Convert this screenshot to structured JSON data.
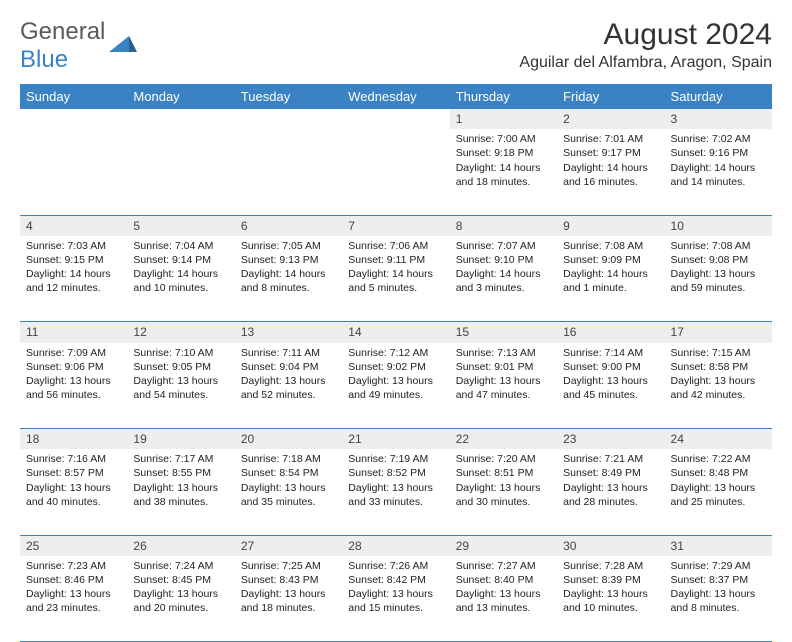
{
  "brand": {
    "word1": "General",
    "word2": "Blue"
  },
  "title": "August 2024",
  "location": "Aguilar del Alfambra, Aragon, Spain",
  "colors": {
    "header_bg": "#3b82c4",
    "header_text": "#ffffff",
    "grid_border": "#3b82c4",
    "daynum_bg": "#eceeef",
    "text": "#222222",
    "logo_gray": "#5a5a5a",
    "logo_blue": "#3b82c4"
  },
  "weekdays": [
    "Sunday",
    "Monday",
    "Tuesday",
    "Wednesday",
    "Thursday",
    "Friday",
    "Saturday"
  ],
  "weeks": [
    [
      null,
      null,
      null,
      null,
      {
        "n": "1",
        "sr": "7:00 AM",
        "ss": "9:18 PM",
        "dl": "14 hours and 18 minutes."
      },
      {
        "n": "2",
        "sr": "7:01 AM",
        "ss": "9:17 PM",
        "dl": "14 hours and 16 minutes."
      },
      {
        "n": "3",
        "sr": "7:02 AM",
        "ss": "9:16 PM",
        "dl": "14 hours and 14 minutes."
      }
    ],
    [
      {
        "n": "4",
        "sr": "7:03 AM",
        "ss": "9:15 PM",
        "dl": "14 hours and 12 minutes."
      },
      {
        "n": "5",
        "sr": "7:04 AM",
        "ss": "9:14 PM",
        "dl": "14 hours and 10 minutes."
      },
      {
        "n": "6",
        "sr": "7:05 AM",
        "ss": "9:13 PM",
        "dl": "14 hours and 8 minutes."
      },
      {
        "n": "7",
        "sr": "7:06 AM",
        "ss": "9:11 PM",
        "dl": "14 hours and 5 minutes."
      },
      {
        "n": "8",
        "sr": "7:07 AM",
        "ss": "9:10 PM",
        "dl": "14 hours and 3 minutes."
      },
      {
        "n": "9",
        "sr": "7:08 AM",
        "ss": "9:09 PM",
        "dl": "14 hours and 1 minute."
      },
      {
        "n": "10",
        "sr": "7:08 AM",
        "ss": "9:08 PM",
        "dl": "13 hours and 59 minutes."
      }
    ],
    [
      {
        "n": "11",
        "sr": "7:09 AM",
        "ss": "9:06 PM",
        "dl": "13 hours and 56 minutes."
      },
      {
        "n": "12",
        "sr": "7:10 AM",
        "ss": "9:05 PM",
        "dl": "13 hours and 54 minutes."
      },
      {
        "n": "13",
        "sr": "7:11 AM",
        "ss": "9:04 PM",
        "dl": "13 hours and 52 minutes."
      },
      {
        "n": "14",
        "sr": "7:12 AM",
        "ss": "9:02 PM",
        "dl": "13 hours and 49 minutes."
      },
      {
        "n": "15",
        "sr": "7:13 AM",
        "ss": "9:01 PM",
        "dl": "13 hours and 47 minutes."
      },
      {
        "n": "16",
        "sr": "7:14 AM",
        "ss": "9:00 PM",
        "dl": "13 hours and 45 minutes."
      },
      {
        "n": "17",
        "sr": "7:15 AM",
        "ss": "8:58 PM",
        "dl": "13 hours and 42 minutes."
      }
    ],
    [
      {
        "n": "18",
        "sr": "7:16 AM",
        "ss": "8:57 PM",
        "dl": "13 hours and 40 minutes."
      },
      {
        "n": "19",
        "sr": "7:17 AM",
        "ss": "8:55 PM",
        "dl": "13 hours and 38 minutes."
      },
      {
        "n": "20",
        "sr": "7:18 AM",
        "ss": "8:54 PM",
        "dl": "13 hours and 35 minutes."
      },
      {
        "n": "21",
        "sr": "7:19 AM",
        "ss": "8:52 PM",
        "dl": "13 hours and 33 minutes."
      },
      {
        "n": "22",
        "sr": "7:20 AM",
        "ss": "8:51 PM",
        "dl": "13 hours and 30 minutes."
      },
      {
        "n": "23",
        "sr": "7:21 AM",
        "ss": "8:49 PM",
        "dl": "13 hours and 28 minutes."
      },
      {
        "n": "24",
        "sr": "7:22 AM",
        "ss": "8:48 PM",
        "dl": "13 hours and 25 minutes."
      }
    ],
    [
      {
        "n": "25",
        "sr": "7:23 AM",
        "ss": "8:46 PM",
        "dl": "13 hours and 23 minutes."
      },
      {
        "n": "26",
        "sr": "7:24 AM",
        "ss": "8:45 PM",
        "dl": "13 hours and 20 minutes."
      },
      {
        "n": "27",
        "sr": "7:25 AM",
        "ss": "8:43 PM",
        "dl": "13 hours and 18 minutes."
      },
      {
        "n": "28",
        "sr": "7:26 AM",
        "ss": "8:42 PM",
        "dl": "13 hours and 15 minutes."
      },
      {
        "n": "29",
        "sr": "7:27 AM",
        "ss": "8:40 PM",
        "dl": "13 hours and 13 minutes."
      },
      {
        "n": "30",
        "sr": "7:28 AM",
        "ss": "8:39 PM",
        "dl": "13 hours and 10 minutes."
      },
      {
        "n": "31",
        "sr": "7:29 AM",
        "ss": "8:37 PM",
        "dl": "13 hours and 8 minutes."
      }
    ]
  ],
  "labels": {
    "sunrise": "Sunrise: ",
    "sunset": "Sunset: ",
    "daylight": "Daylight: "
  }
}
